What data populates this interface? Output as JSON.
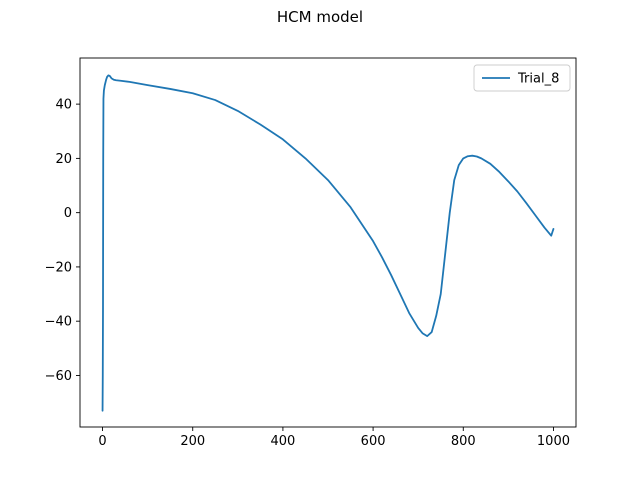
{
  "chart_data": {
    "type": "line",
    "title": "HCM model",
    "xlabel": "",
    "ylabel": "",
    "xlim": [
      -50,
      1050
    ],
    "ylim": [
      -79,
      57
    ],
    "xticks": [
      0,
      200,
      400,
      600,
      800,
      1000
    ],
    "yticks": [
      -60,
      -40,
      -20,
      0,
      20,
      40
    ],
    "grid": false,
    "legend_position": "top-right",
    "series": [
      {
        "name": "Trial_8",
        "color": "#1f77b4",
        "x": [
          0,
          0.5,
          1,
          1.5,
          2,
          3,
          5,
          8,
          10,
          13,
          16,
          20,
          25,
          30,
          40,
          60,
          80,
          100,
          150,
          200,
          250,
          300,
          350,
          400,
          450,
          500,
          550,
          600,
          620,
          640,
          660,
          680,
          700,
          710,
          720,
          730,
          740,
          750,
          760,
          770,
          780,
          790,
          800,
          810,
          820,
          830,
          840,
          860,
          880,
          900,
          920,
          940,
          960,
          980,
          995,
          998,
          1000
        ],
        "y": [
          -73,
          -60,
          -35,
          20,
          42,
          45,
          47,
          49,
          50,
          50.6,
          50.4,
          49.5,
          49,
          48.8,
          48.6,
          48.2,
          47.6,
          47,
          45.6,
          44,
          41.5,
          37.5,
          32.5,
          27,
          20,
          12,
          2,
          -10.5,
          -16.5,
          -23,
          -30,
          -37,
          -42.5,
          -44.5,
          -45.5,
          -44,
          -38,
          -30,
          -15,
          0,
          12,
          17.5,
          20,
          20.8,
          21,
          20.7,
          20,
          18,
          15,
          11.5,
          7.8,
          3.5,
          -1,
          -5.5,
          -8.5,
          -7,
          -6
        ]
      }
    ]
  }
}
